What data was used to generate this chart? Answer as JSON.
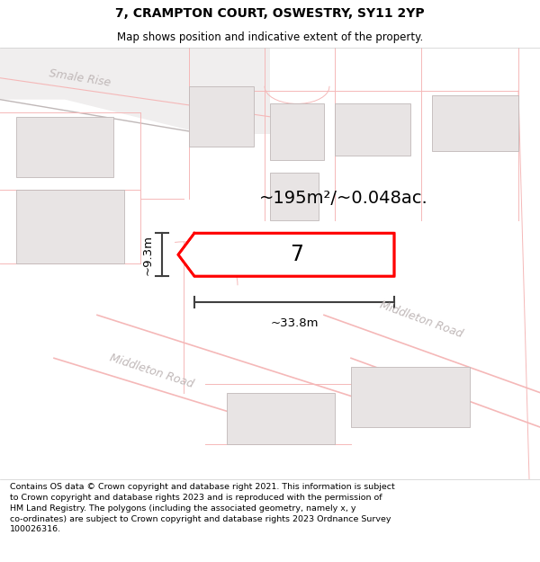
{
  "title_line1": "7, CRAMPTON COURT, OSWESTRY, SY11 2YP",
  "title_line2": "Map shows position and indicative extent of the property.",
  "area_label": "~195m²/~0.048ac.",
  "width_label": "~33.8m",
  "height_label": "~9.3m",
  "number_label": "7",
  "footer_text": "Contains OS data © Crown copyright and database right 2021. This information is subject to Crown copyright and database rights 2023 and is reproduced with the permission of HM Land Registry. The polygons (including the associated geometry, namely x, y co-ordinates) are subject to Crown copyright and database rights 2023 Ordnance Survey 100026316.",
  "map_bg": "#ffffff",
  "plot_fill": "#ffffff",
  "plot_color": "#ff0000",
  "road_color": "#f5b8b8",
  "road_outline": "#cccccc",
  "building_fill": "#e8e4e4",
  "building_edge": "#c0b8b8",
  "dim_color": "#404040",
  "text_color": "#000000",
  "road_text_color": "#c0b8b8",
  "title_fontsize": 10,
  "subtitle_fontsize": 8.5,
  "area_fontsize": 14,
  "num_fontsize": 17,
  "dim_fontsize": 9.5,
  "road_fontsize": 9
}
